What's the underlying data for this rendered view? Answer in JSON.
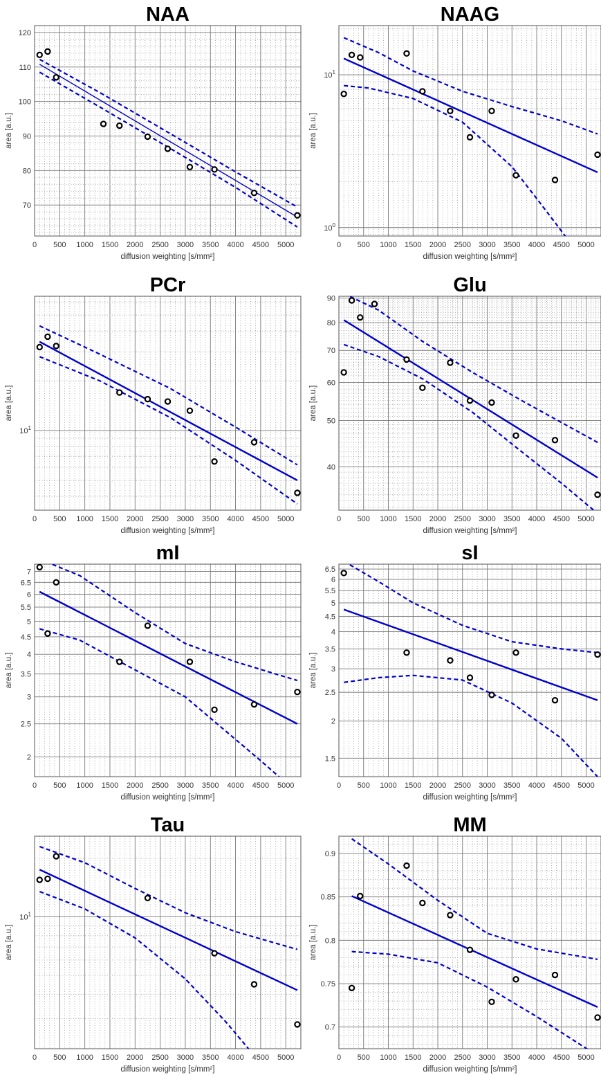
{
  "figure": {
    "style": {
      "fit_color": "#0000cc",
      "marker_color": "#000000",
      "grid_major_color": "#777777",
      "grid_minor_color": "#999999",
      "axes_color": "#555555"
    },
    "x_ticks": [
      "0",
      "500",
      "1000",
      "1500",
      "2000",
      "2500",
      "3000",
      "3500",
      "4000",
      "4500",
      "5000"
    ]
  },
  "chart_data": [
    {
      "type": "scatter",
      "title": "NAA",
      "xlabel": "diffusion weighting [s/mm²]",
      "ylabel": "area [a.u.]",
      "xlim": [
        0,
        5300
      ],
      "ylim": [
        61,
        122
      ],
      "yscale": "linear",
      "grid": "on",
      "yticks": [
        70,
        80,
        90,
        100,
        110,
        120
      ],
      "ytick_labels": [
        "70",
        "80",
        "90",
        "100",
        "110",
        "120"
      ],
      "x": [
        100,
        260,
        430,
        1370,
        1690,
        2250,
        2650,
        3090,
        3580,
        4370,
        5230
      ],
      "y": [
        113.5,
        114.5,
        107,
        93.5,
        93,
        89.8,
        86.3,
        81,
        80.3,
        73.5,
        67
      ],
      "fit": {
        "x0": 100,
        "y0": 110.8,
        "x1": 5230,
        "y1": 66.5
      },
      "ci_upper": [
        [
          100,
          112.2
        ],
        [
          1300,
          102.6
        ],
        [
          2700,
          90.7
        ],
        [
          4000,
          79.6
        ],
        [
          5230,
          69.4
        ]
      ],
      "ci_lower": [
        [
          100,
          108.5
        ],
        [
          1300,
          98.4
        ],
        [
          2700,
          86.4
        ],
        [
          4000,
          75.1
        ],
        [
          5230,
          63.6
        ]
      ]
    },
    {
      "type": "scatter",
      "title": "NAAG",
      "xlabel": "diffusion weighting [s/mm²]",
      "ylabel": "area [a.u.]",
      "xlim": [
        0,
        5300
      ],
      "ylim": [
        0.88,
        21
      ],
      "yscale": "log",
      "grid": "on",
      "yticks": [
        1,
        10
      ],
      "ytick_labels": [
        "10⁰",
        "10¹"
      ],
      "x": [
        100,
        260,
        430,
        1370,
        1690,
        2250,
        2650,
        3090,
        3580,
        4370,
        5230
      ],
      "y": [
        7.5,
        13.5,
        13,
        13.8,
        7.8,
        5.8,
        3.9,
        5.8,
        2.2,
        2.05,
        3
      ],
      "fit": {
        "x0": 100,
        "y0": 12.8,
        "x1": 5230,
        "y1": 2.3
      },
      "ci_upper": [
        [
          100,
          17.5
        ],
        [
          800,
          14
        ],
        [
          1500,
          10.6
        ],
        [
          2500,
          7.8
        ],
        [
          3500,
          6.2
        ],
        [
          4500,
          5.0
        ],
        [
          5230,
          4.1
        ]
      ],
      "ci_lower": [
        [
          100,
          8.5
        ],
        [
          600,
          8.2
        ],
        [
          1500,
          7.0
        ],
        [
          2500,
          4.9
        ],
        [
          3500,
          2.5
        ],
        [
          4000,
          1.55
        ],
        [
          4350,
          1.1
        ],
        [
          4600,
          0.86
        ]
      ]
    },
    {
      "type": "scatter",
      "title": "PCr",
      "xlabel": "diffusion weighting [s/mm²]",
      "ylabel": "area [a.u.]",
      "xlim": [
        0,
        5300
      ],
      "ylim": [
        3.3,
        65
      ],
      "yscale": "log",
      "grid": "on",
      "yticks": [
        10
      ],
      "ytick_labels": [
        "10¹"
      ],
      "x": [
        100,
        260,
        430,
        1690,
        2250,
        2650,
        3090,
        3580,
        4370,
        5230
      ],
      "y": [
        32,
        37,
        32.5,
        17,
        15.5,
        15,
        13.2,
        6.5,
        8.5,
        4.2
      ],
      "fit": {
        "x0": 100,
        "y0": 34.5,
        "x1": 5230,
        "y1": 5.0
      },
      "ci_upper": [
        [
          100,
          43
        ],
        [
          1300,
          29
        ],
        [
          2700,
          18
        ],
        [
          4000,
          10.5
        ],
        [
          5230,
          6.2
        ]
      ],
      "ci_lower": [
        [
          100,
          28
        ],
        [
          1300,
          20
        ],
        [
          2700,
          12
        ],
        [
          4000,
          6.6
        ],
        [
          5230,
          3.6
        ]
      ]
    },
    {
      "type": "scatter",
      "title": "Glu",
      "xlabel": "diffusion weighting [s/mm²]",
      "ylabel": "area [a.u.]",
      "xlim": [
        0,
        5300
      ],
      "ylim": [
        32.5,
        90.8
      ],
      "yscale": "log",
      "grid": "on",
      "yticks": [
        40,
        50,
        60,
        70,
        80,
        90
      ],
      "ytick_labels": [
        "40",
        "50",
        "60",
        "70",
        "80",
        "90"
      ],
      "x": [
        100,
        260,
        430,
        720,
        1370,
        1690,
        2250,
        2650,
        3090,
        3580,
        4370,
        5230
      ],
      "y": [
        63,
        89,
        82,
        87.5,
        67,
        58.5,
        66,
        55,
        54.5,
        46.5,
        45.5,
        35
      ],
      "fit": {
        "x0": 100,
        "y0": 81,
        "x1": 5230,
        "y1": 38
      },
      "ci_upper": [
        [
          100,
          92
        ],
        [
          800,
          85
        ],
        [
          1700,
          73
        ],
        [
          2700,
          63
        ],
        [
          3700,
          55
        ],
        [
          5230,
          45
        ]
      ],
      "ci_lower": [
        [
          100,
          72
        ],
        [
          800,
          68
        ],
        [
          1700,
          61
        ],
        [
          2700,
          52
        ],
        [
          3700,
          43
        ],
        [
          4500,
          37
        ],
        [
          5230,
          32
        ]
      ]
    },
    {
      "type": "scatter",
      "title": "mI",
      "xlabel": "diffusion weighting [s/mm²]",
      "ylabel": "area [a.u.]",
      "xlim": [
        0,
        5300
      ],
      "ylim": [
        1.75,
        7.35
      ],
      "yscale": "log",
      "grid": "on",
      "yticks": [
        2,
        2.5,
        3,
        3.5,
        4,
        4.5,
        5,
        5.5,
        6,
        6.5,
        7
      ],
      "ytick_labels": [
        "2",
        "2.5",
        "3",
        "3.5",
        "4",
        "4.5",
        "5",
        "5.5",
        "6",
        "6.5",
        "7"
      ],
      "x": [
        100,
        260,
        430,
        1690,
        2250,
        3090,
        3580,
        4370,
        5230
      ],
      "y": [
        7.2,
        4.6,
        6.5,
        3.8,
        4.85,
        3.8,
        2.75,
        2.85,
        3.1
      ],
      "fit": {
        "x0": 100,
        "y0": 6.1,
        "x1": 5230,
        "y1": 2.5
      },
      "ci_upper": [
        [
          100,
          7.6
        ],
        [
          900,
          6.8
        ],
        [
          2000,
          5.3
        ],
        [
          3000,
          4.3
        ],
        [
          4000,
          3.8
        ],
        [
          5230,
          3.35
        ]
      ],
      "ci_lower": [
        [
          100,
          4.75
        ],
        [
          900,
          4.4
        ],
        [
          2000,
          3.6
        ],
        [
          3000,
          3.0
        ],
        [
          4000,
          2.25
        ],
        [
          4500,
          1.95
        ],
        [
          5230,
          1.57
        ]
      ]
    },
    {
      "type": "scatter",
      "title": "sI",
      "xlabel": "diffusion weighting [s/mm²]",
      "ylabel": "area [a.u.]",
      "xlim": [
        0,
        5300
      ],
      "ylim": [
        1.3,
        6.75
      ],
      "yscale": "log",
      "grid": "on",
      "yticks": [
        1.5,
        2,
        2.5,
        3,
        3.5,
        4,
        4.5,
        5,
        5.5,
        6,
        6.5
      ],
      "ytick_labels": [
        "1.5",
        "2",
        "2.5",
        "3",
        "3.5",
        "4",
        "4.5",
        "5",
        "5.5",
        "6",
        "6.5"
      ],
      "x": [
        100,
        1370,
        2250,
        2650,
        3090,
        3580,
        4370,
        5230
      ],
      "y": [
        6.3,
        3.4,
        3.2,
        2.8,
        2.45,
        3.4,
        2.35,
        3.35
      ],
      "fit": {
        "x0": 100,
        "y0": 4.75,
        "x1": 5230,
        "y1": 2.35
      },
      "ci_upper": [
        [
          100,
          6.9
        ],
        [
          800,
          5.9
        ],
        [
          1500,
          5.0
        ],
        [
          2500,
          4.2
        ],
        [
          3500,
          3.7
        ],
        [
          4500,
          3.5
        ],
        [
          5230,
          3.4
        ]
      ],
      "ci_lower": [
        [
          100,
          2.7
        ],
        [
          800,
          2.8
        ],
        [
          1500,
          2.85
        ],
        [
          2500,
          2.75
        ],
        [
          3500,
          2.3
        ],
        [
          4500,
          1.75
        ],
        [
          5230,
          1.3
        ]
      ]
    },
    {
      "type": "scatter",
      "title": "Tau",
      "xlabel": "diffusion weighting [s/mm²]",
      "ylabel": "area [a.u.]",
      "xlim": [
        0,
        5300
      ],
      "ylim": [
        2.1,
        26
      ],
      "yscale": "log",
      "grid": "on",
      "yticks": [
        10
      ],
      "ytick_labels": [
        "10¹"
      ],
      "x": [
        100,
        260,
        430,
        2250,
        3580,
        4370,
        5230
      ],
      "y": [
        15.5,
        15.7,
        20.5,
        12.5,
        6.5,
        4.5,
        2.8
      ],
      "fit": {
        "x0": 100,
        "y0": 17.5,
        "x1": 5230,
        "y1": 4.2
      },
      "ci_upper": [
        [
          100,
          23
        ],
        [
          1000,
          19
        ],
        [
          2000,
          14
        ],
        [
          3000,
          10.5
        ],
        [
          4000,
          8.4
        ],
        [
          5230,
          6.8
        ]
      ],
      "ci_lower": [
        [
          100,
          13.5
        ],
        [
          1000,
          11
        ],
        [
          2000,
          7.8
        ],
        [
          3000,
          4.8
        ],
        [
          3800,
          2.9
        ],
        [
          4400,
          1.9
        ]
      ]
    },
    {
      "type": "scatter",
      "title": "MM",
      "xlabel": "diffusion weighting [s/mm²]",
      "ylabel": "area [a.u.]",
      "xlim": [
        0,
        5300
      ],
      "ylim": [
        0.675,
        0.92
      ],
      "yscale": "linear",
      "grid": "on",
      "yticks": [
        0.7,
        0.75,
        0.8,
        0.85,
        0.9
      ],
      "ytick_labels": [
        "0.7",
        "0.75",
        "0.8",
        "0.85",
        "0.9"
      ],
      "x": [
        260,
        430,
        1370,
        1690,
        2250,
        2650,
        3090,
        3580,
        4370,
        5230
      ],
      "y": [
        0.745,
        0.851,
        0.886,
        0.843,
        0.829,
        0.789,
        0.729,
        0.755,
        0.76,
        0.711
      ],
      "fit": {
        "x0": 260,
        "y0": 0.851,
        "x1": 5230,
        "y1": 0.723
      },
      "ci_upper": [
        [
          260,
          0.917
        ],
        [
          1000,
          0.888
        ],
        [
          2000,
          0.846
        ],
        [
          3000,
          0.808
        ],
        [
          4000,
          0.79
        ],
        [
          5230,
          0.778
        ]
      ],
      "ci_lower": [
        [
          260,
          0.787
        ],
        [
          1000,
          0.784
        ],
        [
          2000,
          0.774
        ],
        [
          3000,
          0.746
        ],
        [
          4000,
          0.712
        ],
        [
          5230,
          0.667
        ]
      ]
    }
  ]
}
